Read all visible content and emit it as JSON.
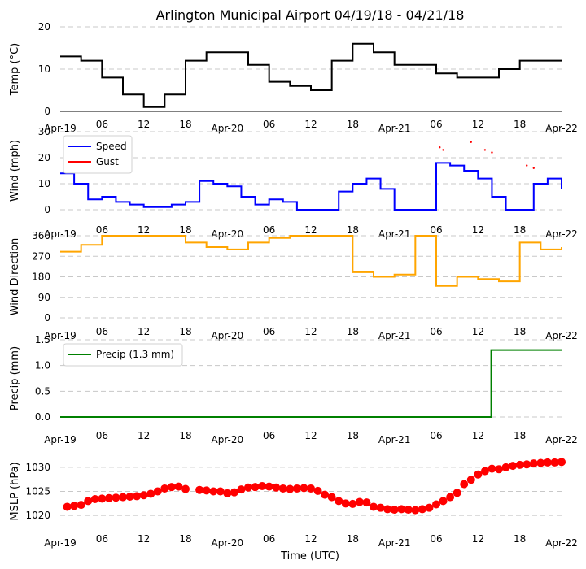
{
  "title": "Arlington Municipal Airport 04/19/18 - 04/21/18",
  "xlabel": "Time (UTC)",
  "x_ticks": [
    "Apr-19",
    "06",
    "12",
    "18",
    "Apr-20",
    "06",
    "12",
    "18",
    "Apr-21",
    "06",
    "12",
    "18",
    "Apr-22"
  ],
  "chart_data": [
    {
      "type": "line",
      "ylabel": "Temp ($^\\circ$C)",
      "ylabel_display": "Temp (°C)",
      "ylim": [
        0,
        20
      ],
      "yticks": [
        "0",
        "10",
        "20"
      ],
      "color": "#000000",
      "series": [
        {
          "name": "Temp",
          "x_hours": [
            0,
            3,
            6,
            9,
            12,
            15,
            18,
            21,
            24,
            27,
            30,
            33,
            36,
            39,
            42,
            45,
            48,
            51,
            54,
            57,
            60,
            63,
            66,
            69,
            72
          ],
          "values": [
            13,
            12,
            8,
            4,
            1,
            4,
            12,
            14,
            14,
            11,
            7,
            6,
            5,
            12,
            16,
            14,
            11,
            11,
            9,
            8,
            8,
            10,
            12,
            12,
            12
          ]
        }
      ]
    },
    {
      "type": "scatter",
      "ylabel": "Wind (mph)",
      "ylim": [
        0,
        30
      ],
      "yticks": [
        "0",
        "10",
        "20",
        "30"
      ],
      "legend": [
        "Speed",
        "Gust"
      ],
      "series": [
        {
          "name": "Speed",
          "color": "#0000ff",
          "x_hours": [
            0,
            2,
            4,
            6,
            8,
            10,
            12,
            14,
            16,
            18,
            20,
            22,
            24,
            26,
            28,
            30,
            32,
            34,
            36,
            38,
            40,
            42,
            44,
            46,
            48,
            50,
            52,
            54,
            56,
            58,
            60,
            62,
            64,
            66,
            68,
            70,
            72
          ],
          "values": [
            14,
            10,
            4,
            5,
            3,
            2,
            1,
            1,
            2,
            3,
            11,
            10,
            9,
            5,
            2,
            4,
            3,
            0,
            0,
            0,
            7,
            10,
            12,
            8,
            0,
            0,
            0,
            18,
            17,
            15,
            12,
            5,
            0,
            0,
            10,
            12,
            8
          ]
        },
        {
          "name": "Gust",
          "color": "#ff0000",
          "x_hours": [
            54.5,
            55,
            59,
            61,
            62,
            67,
            68
          ],
          "values": [
            24,
            23,
            26,
            23,
            22,
            17,
            16
          ]
        }
      ]
    },
    {
      "type": "line",
      "ylabel": "Wind Direction",
      "ylim": [
        0,
        360
      ],
      "yticks": [
        "0",
        "90",
        "180",
        "270",
        "360"
      ],
      "color": "#ffa500",
      "series": [
        {
          "name": "Direction",
          "x_hours": [
            0,
            3,
            6,
            9,
            12,
            15,
            18,
            21,
            24,
            27,
            30,
            33,
            36,
            39,
            42,
            45,
            48,
            51,
            54,
            57,
            60,
            63,
            66,
            69,
            72
          ],
          "values": [
            290,
            320,
            360,
            360,
            360,
            360,
            330,
            310,
            300,
            330,
            350,
            360,
            360,
            360,
            200,
            180,
            190,
            360,
            140,
            180,
            170,
            160,
            330,
            300,
            310
          ]
        }
      ]
    },
    {
      "type": "line",
      "ylabel": "Precip (mm)",
      "ylim": [
        0,
        1.5
      ],
      "yticks": [
        "0.0",
        "0.5",
        "1.0",
        "1.5"
      ],
      "legend": [
        "Precip (1.3 mm)"
      ],
      "color": "#008000",
      "series": [
        {
          "name": "Precip (1.3 mm)",
          "x_hours": [
            0,
            10,
            20,
            30,
            40,
            50,
            60,
            61.6,
            61.9,
            65,
            72
          ],
          "values": [
            0,
            0,
            0,
            0,
            0,
            0,
            0,
            0,
            1.3,
            1.3,
            1.3
          ]
        }
      ]
    },
    {
      "type": "scatter",
      "ylabel": "MSLP (hPa)",
      "ylim": [
        1018,
        1032
      ],
      "yticks": [
        "1020",
        "1025",
        "1030"
      ],
      "color": "#ff0000",
      "series": [
        {
          "name": "MSLP",
          "x_hours": [
            1,
            2,
            3,
            4,
            5,
            6,
            7,
            8,
            9,
            10,
            11,
            12,
            13,
            14,
            15,
            16,
            17,
            18,
            20,
            21,
            22,
            23,
            24,
            25,
            26,
            27,
            28,
            29,
            30,
            31,
            32,
            33,
            34,
            35,
            36,
            37,
            38,
            39,
            40,
            41,
            42,
            43,
            44,
            45,
            46,
            47,
            48,
            49,
            50,
            51,
            52,
            53,
            54,
            55,
            56,
            57,
            58,
            59,
            60,
            61,
            62,
            63,
            64,
            65,
            66,
            67,
            68,
            69,
            70,
            71,
            72
          ],
          "values": [
            1021.8,
            1022,
            1022.2,
            1023,
            1023.4,
            1023.5,
            1023.6,
            1023.7,
            1023.8,
            1023.9,
            1024,
            1024.2,
            1024.5,
            1025,
            1025.6,
            1025.9,
            1026,
            1025.5,
            1025.3,
            1025.2,
            1025,
            1025,
            1024.6,
            1024.8,
            1025.4,
            1025.8,
            1025.9,
            1026.1,
            1026,
            1025.8,
            1025.6,
            1025.5,
            1025.6,
            1025.7,
            1025.6,
            1025.1,
            1024.3,
            1023.8,
            1023,
            1022.5,
            1022.4,
            1022.8,
            1022.7,
            1021.8,
            1021.6,
            1021.3,
            1021.2,
            1021.3,
            1021.2,
            1021.1,
            1021.3,
            1021.6,
            1022.3,
            1023,
            1023.8,
            1024.7,
            1026.5,
            1027.4,
            1028.5,
            1029.2,
            1029.7,
            1029.6,
            1030,
            1030.3,
            1030.5,
            1030.6,
            1030.8,
            1030.9,
            1031,
            1031,
            1031.1
          ]
        }
      ]
    }
  ]
}
